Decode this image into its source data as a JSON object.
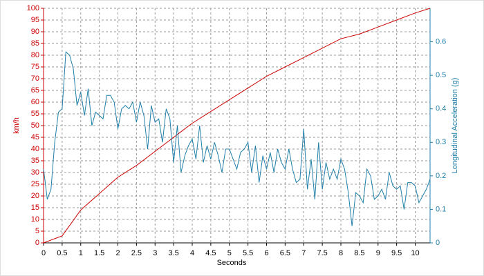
{
  "chart_data": {
    "type": "line",
    "xlabel": "Seconds",
    "ylabel": "km/h",
    "y2label": "Longitudinal Acceleration (g)",
    "xlim": [
      0,
      10.4
    ],
    "xticks": [
      0,
      0.5,
      1,
      1.5,
      2,
      2.5,
      3,
      3.5,
      4,
      4.5,
      5,
      5.5,
      6,
      6.5,
      7,
      7.5,
      8,
      8.5,
      9,
      9.5,
      10
    ],
    "ylim": [
      0,
      100
    ],
    "yticks": [
      0,
      5,
      10,
      15,
      20,
      25,
      30,
      35,
      40,
      45,
      50,
      55,
      60,
      65,
      70,
      75,
      80,
      85,
      90,
      95,
      100
    ],
    "y2lim": [
      0,
      0.7
    ],
    "y2ticks": [
      0,
      0.1,
      0.2,
      0.3,
      0.4,
      0.5,
      0.6
    ],
    "grid": true,
    "ycolor": "#cc0000",
    "y2color": "#1f7fa8",
    "series": [
      {
        "color": "#cc0000",
        "x": [
          0,
          0.5,
          1,
          1.5,
          2,
          2.5,
          3,
          3.5,
          4,
          4.5,
          5,
          5.5,
          6,
          6.5,
          7,
          7.5,
          8,
          8.5,
          9,
          9.5,
          10,
          10.4
        ],
        "values": [
          0,
          3,
          14,
          21,
          28,
          33,
          39,
          45,
          51,
          56,
          61,
          66,
          71,
          75,
          79,
          83,
          87,
          89,
          92,
          95,
          98,
          100
        ]
      },
      {
        "color": "#1f7fa8",
        "axis": "y2",
        "x": [
          0,
          0.1,
          0.2,
          0.3,
          0.4,
          0.5,
          0.6,
          0.7,
          0.8,
          0.9,
          1,
          1.1,
          1.2,
          1.3,
          1.4,
          1.5,
          1.6,
          1.7,
          1.8,
          1.9,
          2,
          2.1,
          2.2,
          2.3,
          2.4,
          2.5,
          2.6,
          2.7,
          2.8,
          2.9,
          3,
          3.1,
          3.2,
          3.3,
          3.4,
          3.5,
          3.6,
          3.7,
          3.8,
          3.9,
          4,
          4.1,
          4.2,
          4.3,
          4.4,
          4.5,
          4.6,
          4.7,
          4.8,
          4.9,
          5,
          5.1,
          5.2,
          5.3,
          5.4,
          5.5,
          5.6,
          5.7,
          5.8,
          5.9,
          6,
          6.1,
          6.2,
          6.3,
          6.4,
          6.5,
          6.6,
          6.7,
          6.8,
          6.9,
          7,
          7.1,
          7.2,
          7.3,
          7.4,
          7.5,
          7.6,
          7.7,
          7.8,
          7.9,
          8,
          8.1,
          8.2,
          8.3,
          8.4,
          8.5,
          8.6,
          8.7,
          8.8,
          8.9,
          9,
          9.1,
          9.2,
          9.3,
          9.4,
          9.5,
          9.6,
          9.7,
          9.8,
          9.9,
          10,
          10.1,
          10.2,
          10.3,
          10.4
        ],
        "values": [
          0.22,
          0.13,
          0.16,
          0.3,
          0.39,
          0.4,
          0.57,
          0.56,
          0.52,
          0.41,
          0.45,
          0.38,
          0.46,
          0.35,
          0.39,
          0.38,
          0.37,
          0.44,
          0.44,
          0.42,
          0.34,
          0.4,
          0.41,
          0.4,
          0.42,
          0.36,
          0.42,
          0.38,
          0.28,
          0.41,
          0.36,
          0.37,
          0.3,
          0.4,
          0.37,
          0.24,
          0.35,
          0.21,
          0.26,
          0.29,
          0.31,
          0.25,
          0.35,
          0.24,
          0.29,
          0.25,
          0.3,
          0.26,
          0.21,
          0.28,
          0.28,
          0.25,
          0.22,
          0.27,
          0.28,
          0.3,
          0.21,
          0.29,
          0.18,
          0.26,
          0.22,
          0.27,
          0.21,
          0.28,
          0.24,
          0.22,
          0.28,
          0.22,
          0.18,
          0.19,
          0.34,
          0.16,
          0.25,
          0.13,
          0.3,
          0.16,
          0.24,
          0.19,
          0.22,
          0.19,
          0.25,
          0.22,
          0.15,
          0.05,
          0.15,
          0.14,
          0.12,
          0.22,
          0.2,
          0.13,
          0.14,
          0.16,
          0.13,
          0.21,
          0.17,
          0.16,
          0.17,
          0.1,
          0.18,
          0.18,
          0.17,
          0.12,
          0.14,
          0.16,
          0.19
        ]
      }
    ]
  }
}
